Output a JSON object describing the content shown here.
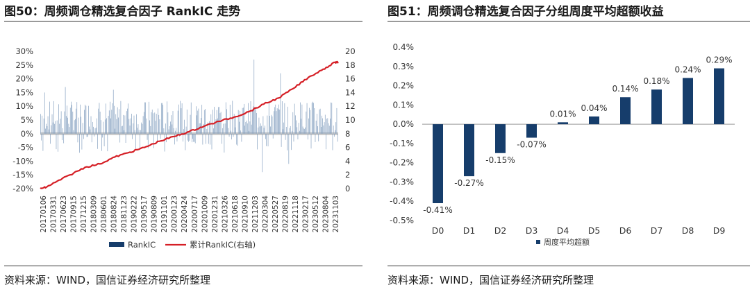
{
  "left": {
    "title": "图50：周频调仓精选复合因子 RankIC 走势",
    "source": "资料来源：WIND，国信证券经济研究所整理"
  },
  "right": {
    "title": "图51：周频调仓精选复合因子分组周度平均超额收益",
    "source": "资料来源：WIND，国信证券经济研究所整理"
  },
  "colors": {
    "bar_dark": "#163d6b",
    "bar_light": "#7f9cbd",
    "line_red": "#d51f26",
    "zero_band": "#c8c8c8"
  },
  "chart_data": [
    {
      "type": "bar+line",
      "title": "周频调仓精选复合因子 RankIC 走势",
      "left_axis": {
        "ylim": [
          -20,
          30
        ],
        "ticks": [
          "-20%",
          "-15%",
          "-10%",
          "-5%",
          "0%",
          "5%",
          "10%",
          "15%",
          "20%",
          "25%",
          "30%"
        ]
      },
      "right_axis": {
        "ylim": [
          0,
          20
        ],
        "ticks": [
          "0",
          "2",
          "4",
          "6",
          "8",
          "10",
          "12",
          "14",
          "16",
          "18",
          "20"
        ]
      },
      "x_tick_labels": [
        "20170106",
        "20170331",
        "20170623",
        "20170915",
        "20171215",
        "20180309",
        "20180601",
        "20180824",
        "20181123",
        "20190222",
        "20190517",
        "20190809",
        "20191101",
        "20200123",
        "20200424",
        "20200717",
        "20201009",
        "20201231",
        "20210326",
        "20210618",
        "20210910",
        "20211203",
        "20220304",
        "20220527",
        "20220819",
        "20221118",
        "20230217",
        "20230512",
        "20230804",
        "20231103"
      ],
      "series": [
        {
          "name": "RankIC",
          "kind": "bar",
          "axis": "left",
          "count": 360,
          "range_pct": [
            -14,
            27
          ]
        },
        {
          "name": "累计RankIC(右轴)",
          "kind": "line",
          "axis": "right",
          "x_frac": [
            0,
            0.02,
            0.05,
            0.1,
            0.15,
            0.2,
            0.25,
            0.3,
            0.35,
            0.4,
            0.45,
            0.5,
            0.55,
            0.6,
            0.65,
            0.7,
            0.75,
            0.8,
            0.85,
            0.9,
            0.95,
            0.99,
            1
          ],
          "values": [
            0,
            0.2,
            0.9,
            2.0,
            3.1,
            3.6,
            4.6,
            5.3,
            6.0,
            6.9,
            7.6,
            8.3,
            9.1,
            9.8,
            10.4,
            11.2,
            12.3,
            13.2,
            14.6,
            16.2,
            17.4,
            18.4,
            18.4
          ]
        }
      ],
      "legend": [
        "RankIC",
        "累计RankIC(右轴)"
      ],
      "legend_position": "bottom"
    },
    {
      "type": "bar",
      "title": "周频调仓精选复合因子分组周度平均超额收益",
      "categories": [
        "D0",
        "D1",
        "D2",
        "D3",
        "D4",
        "D5",
        "D6",
        "D7",
        "D8",
        "D9"
      ],
      "values": [
        -0.41,
        -0.27,
        -0.15,
        -0.07,
        0.01,
        0.04,
        0.14,
        0.18,
        0.24,
        0.29
      ],
      "data_labels": [
        "-0.41%",
        "-0.27%",
        "-0.15%",
        "-0.07%",
        "0.01%",
        "0.04%",
        "0.14%",
        "0.18%",
        "0.24%",
        "0.29%"
      ],
      "ylim": [
        -0.5,
        0.4
      ],
      "y_ticks": [
        "-0.5%",
        "-0.4%",
        "-0.3%",
        "-0.2%",
        "-0.1%",
        "0.0%",
        "0.1%",
        "0.2%",
        "0.3%",
        "0.4%"
      ],
      "series_name": "周度平均超额",
      "legend_position": "bottom"
    }
  ]
}
